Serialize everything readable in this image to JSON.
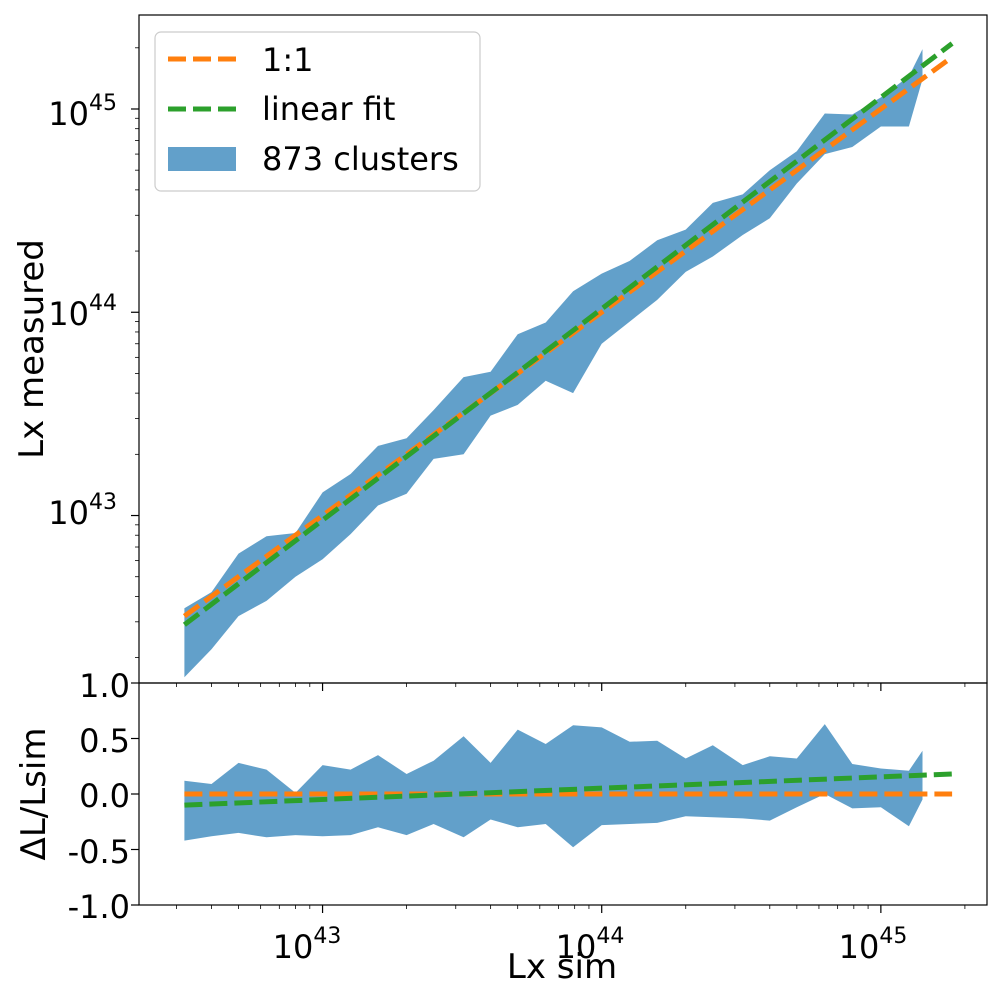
{
  "chart_data": [
    {
      "type": "area",
      "panel": "top",
      "title": "",
      "xlabel": "",
      "ylabel": "Lx measured",
      "xscale": "log",
      "yscale": "log",
      "xlim": [
        2.2e+42,
        2.4e+45
      ],
      "ylim": [
        1.5e+42,
        2.9e+45
      ],
      "xticks": [
        1e+43,
        1e+44,
        1e+45
      ],
      "yticks": [
        1e+43,
        1e+44,
        1e+45
      ],
      "ytick_labels": [
        "10",
        "10",
        "10"
      ],
      "ytick_exponents": [
        "43",
        "44",
        "45"
      ],
      "legend": {
        "position": "top-left",
        "entries": [
          "1:1",
          "linear fit",
          "873 clusters"
        ]
      },
      "series": [
        {
          "name": "1:1",
          "kind": "line",
          "color": "#ff7f0e",
          "x": [
            3.2e+42,
            1.8e+45
          ],
          "y": [
            3.2e+42,
            1.8e+45
          ]
        },
        {
          "name": "linear fit",
          "kind": "line",
          "color": "#2ca02c",
          "x": [
            3.2e+42,
            1.8e+45
          ],
          "y": [
            2.9e+42,
            2.1e+45
          ]
        },
        {
          "name": "873 clusters",
          "kind": "band",
          "color": "#1f77b4",
          "x": [
            3.2e+42,
            4e+42,
            5e+42,
            6.3e+42,
            8e+42,
            1e+43,
            1.26e+43,
            1.58e+43,
            2e+43,
            2.5e+43,
            3.2e+43,
            4e+43,
            5e+43,
            6.3e+43,
            7.9e+43,
            1e+44,
            1.26e+44,
            1.58e+44,
            2e+44,
            2.5e+44,
            3.2e+44,
            4e+44,
            5e+44,
            6.3e+44,
            7.9e+44,
            1e+45,
            1.26e+45,
            1.41e+45
          ],
          "upper": [
            3.5e+42,
            4.2e+42,
            6.5e+42,
            7.9e+42,
            8.2e+42,
            1.3e+43,
            1.6e+43,
            2.2e+43,
            2.4e+43,
            3.3e+43,
            4.8e+43,
            5.1e+43,
            7.8e+43,
            8.9e+43,
            1.27e+44,
            1.55e+44,
            1.79e+44,
            2.26e+44,
            2.55e+44,
            3.45e+44,
            3.8e+44,
            5e+44,
            6.2e+44,
            9.5e+44,
            9.4e+44,
            1.14e+45,
            1.45e+45,
            1.97e+45
          ],
          "lower": [
            1.6e+42,
            2.2e+42,
            3.2e+42,
            3.8e+42,
            5e+42,
            6.1e+42,
            8.1e+42,
            1.12e+43,
            1.28e+43,
            1.9e+43,
            2e+43,
            3.1e+43,
            3.5e+43,
            4.6e+43,
            4e+43,
            7e+43,
            9e+43,
            1.15e+44,
            1.58e+44,
            1.88e+44,
            2.4e+44,
            2.9e+44,
            4.3e+44,
            6e+44,
            6.5e+44,
            8.2e+44,
            8.2e+44,
            1.4e+45
          ]
        }
      ]
    },
    {
      "type": "area",
      "panel": "bottom",
      "title": "",
      "xlabel": "Lx sim",
      "ylabel": "ΔL/Lsim",
      "xscale": "log",
      "yscale": "linear",
      "xlim": [
        2.2e+42,
        2.4e+45
      ],
      "ylim": [
        -1.0,
        1.0
      ],
      "xticks": [
        1e+43,
        1e+44,
        1e+45
      ],
      "xtick_labels": [
        "10",
        "10",
        "10"
      ],
      "xtick_exponents": [
        "43",
        "44",
        "45"
      ],
      "yticks": [
        -1.0,
        -0.5,
        0.0,
        0.5,
        1.0
      ],
      "ytick_labels": [
        "-1.0",
        "-0.5",
        "0.0",
        "0.5",
        "1.0"
      ],
      "series": [
        {
          "name": "1:1",
          "kind": "line",
          "color": "#ff7f0e",
          "x": [
            3.2e+42,
            1.8e+45
          ],
          "y": [
            0.0,
            0.0
          ]
        },
        {
          "name": "linear fit",
          "kind": "line",
          "color": "#2ca02c",
          "x": [
            3.2e+42,
            1.8e+45
          ],
          "y": [
            -0.1,
            0.18
          ]
        },
        {
          "name": "873 clusters",
          "kind": "band",
          "color": "#1f77b4",
          "x": [
            3.2e+42,
            4e+42,
            5e+42,
            6.3e+42,
            8e+42,
            1e+43,
            1.26e+43,
            1.58e+43,
            2e+43,
            2.5e+43,
            3.2e+43,
            4e+43,
            5e+43,
            6.3e+43,
            7.9e+43,
            1e+44,
            1.26e+44,
            1.58e+44,
            2e+44,
            2.5e+44,
            3.2e+44,
            4e+44,
            5e+44,
            6.3e+44,
            7.9e+44,
            1e+45,
            1.26e+45,
            1.41e+45
          ],
          "upper": [
            0.12,
            0.09,
            0.28,
            0.22,
            0.01,
            0.26,
            0.22,
            0.35,
            0.18,
            0.3,
            0.52,
            0.28,
            0.58,
            0.45,
            0.62,
            0.6,
            0.47,
            0.48,
            0.32,
            0.44,
            0.26,
            0.34,
            0.32,
            0.63,
            0.27,
            0.23,
            0.21,
            0.39
          ],
          "lower": [
            -0.42,
            -0.38,
            -0.35,
            -0.39,
            -0.37,
            -0.38,
            -0.37,
            -0.3,
            -0.37,
            -0.27,
            -0.39,
            -0.23,
            -0.3,
            -0.27,
            -0.48,
            -0.28,
            -0.27,
            -0.26,
            -0.2,
            -0.21,
            -0.22,
            -0.24,
            -0.12,
            0.0,
            -0.13,
            -0.12,
            -0.29,
            -0.05
          ]
        }
      ]
    }
  ]
}
